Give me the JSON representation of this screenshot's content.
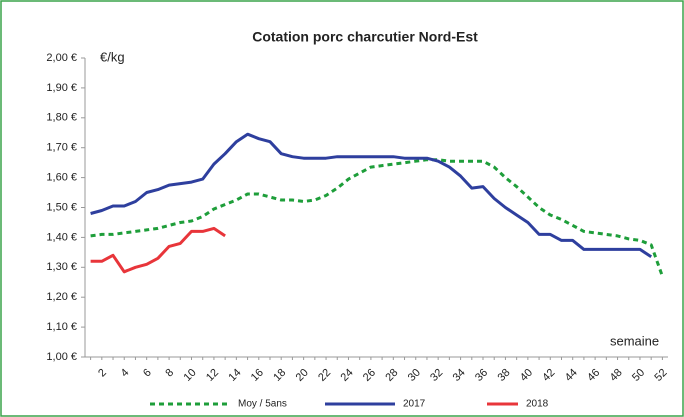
{
  "chart_data": {
    "type": "line",
    "title": "Cotation porc charcutier Nord-Est",
    "y_label": "€/kg",
    "x_label": "semaine",
    "categories": [
      null,
      "2",
      null,
      "4",
      null,
      "6",
      null,
      "8",
      null,
      "10",
      null,
      "12",
      null,
      "14",
      null,
      "16",
      null,
      "18",
      null,
      "20",
      null,
      "22",
      null,
      "24",
      null,
      "26",
      null,
      "28",
      null,
      "30",
      null,
      "32",
      null,
      "34",
      null,
      "36",
      null,
      "38",
      null,
      "40",
      null,
      "42",
      null,
      "44",
      null,
      "46",
      null,
      "48",
      null,
      "50",
      null,
      "52"
    ],
    "series": [
      {
        "name": "Moy / 5ans",
        "color": "#1e9e3a",
        "dash": true,
        "values": [
          1.405,
          1.41,
          1.41,
          1.415,
          1.42,
          1.425,
          1.43,
          1.44,
          1.45,
          1.455,
          1.47,
          1.495,
          1.51,
          1.525,
          1.545,
          1.545,
          1.535,
          1.525,
          1.525,
          1.52,
          1.525,
          1.54,
          1.565,
          1.595,
          1.615,
          1.635,
          1.64,
          1.645,
          1.65,
          1.655,
          1.66,
          1.66,
          1.655,
          1.655,
          1.655,
          1.655,
          1.635,
          1.6,
          1.57,
          1.535,
          1.5,
          1.475,
          1.46,
          1.44,
          1.42,
          1.415,
          1.41,
          1.405,
          1.395,
          1.39,
          1.375,
          1.27
        ]
      },
      {
        "name": "2017",
        "color": "#2e3f9e",
        "dash": false,
        "values": [
          1.48,
          1.49,
          1.505,
          1.505,
          1.52,
          1.55,
          1.56,
          1.575,
          1.58,
          1.585,
          1.595,
          1.645,
          1.68,
          1.72,
          1.745,
          1.73,
          1.72,
          1.68,
          1.67,
          1.665,
          1.665,
          1.665,
          1.67,
          1.67,
          1.67,
          1.67,
          1.67,
          1.67,
          1.665,
          1.665,
          1.665,
          1.655,
          1.635,
          1.605,
          1.565,
          1.57,
          1.53,
          1.5,
          1.475,
          1.45,
          1.41,
          1.41,
          1.39,
          1.39,
          1.36,
          1.36,
          1.36,
          1.36,
          1.36,
          1.36,
          1.335,
          null
        ]
      },
      {
        "name": "2018",
        "color": "#e8353a",
        "dash": false,
        "values": [
          1.32,
          1.32,
          1.34,
          1.285,
          1.3,
          1.31,
          1.33,
          1.37,
          1.38,
          1.42,
          1.42,
          1.43,
          1.405,
          null,
          null,
          null,
          null,
          null,
          null,
          null,
          null,
          null,
          null,
          null,
          null,
          null,
          null,
          null,
          null,
          null,
          null,
          null,
          null,
          null,
          null,
          null,
          null,
          null,
          null,
          null,
          null,
          null,
          null,
          null,
          null,
          null,
          null,
          null,
          null,
          null,
          null,
          null
        ]
      }
    ],
    "ylim": [
      1.0,
      2.0
    ],
    "yticks": [
      {
        "value": 1.0,
        "label": "1,00 €"
      },
      {
        "value": 1.1,
        "label": "1,10 €"
      },
      {
        "value": 1.2,
        "label": "1,20 €"
      },
      {
        "value": 1.3,
        "label": "1,30 €"
      },
      {
        "value": 1.4,
        "label": "1,40 €"
      },
      {
        "value": 1.5,
        "label": "1,50 €"
      },
      {
        "value": 1.6,
        "label": "1,60 €"
      },
      {
        "value": 1.7,
        "label": "1,70 €"
      },
      {
        "value": 1.8,
        "label": "1,80 €"
      },
      {
        "value": 1.9,
        "label": "1,90 €"
      },
      {
        "value": 2.0,
        "label": "2,00 €"
      }
    ],
    "grid": false
  }
}
